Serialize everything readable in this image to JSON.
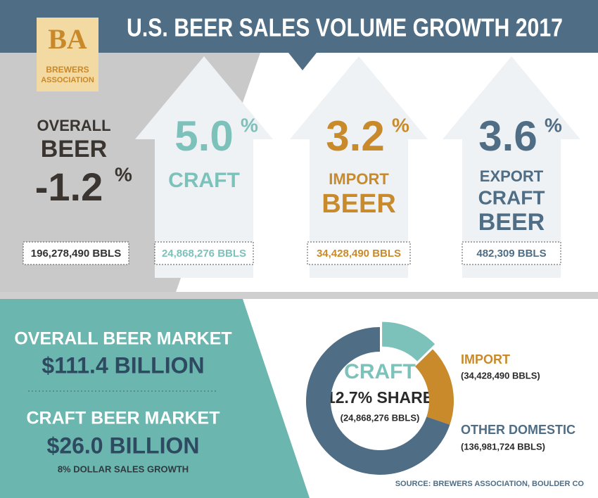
{
  "header": {
    "title": "U.S. BEER SALES VOLUME GROWTH 2017",
    "logo": {
      "mark": "BA",
      "name": [
        "BREWERS",
        "ASSOCIATION"
      ]
    }
  },
  "stats": [
    {
      "lines": [
        "OVERALL",
        "BEER"
      ],
      "value": "-1.2",
      "unit": "%",
      "volume": "196,278,490 BBLS"
    },
    {
      "lines": [
        "CRAFT"
      ],
      "value": "5.0",
      "unit": "%",
      "volume": "24,868,276 BBLS"
    },
    {
      "lines": [
        "IMPORT",
        "BEER"
      ],
      "value": "3.2",
      "unit": "%",
      "volume": "34,428,490 BBLS"
    },
    {
      "lines": [
        "EXPORT",
        "CRAFT",
        "BEER"
      ],
      "value": "3.6",
      "unit": "%",
      "volume": "482,309 BBLS"
    }
  ],
  "market": {
    "overall": {
      "label": "OVERALL BEER MARKET",
      "value": "$111.4 BILLION"
    },
    "craft": {
      "label": "CRAFT BEER MARKET",
      "value": "$26.0 BILLION",
      "note": "8% DOLLAR SALES GROWTH"
    }
  },
  "chart_data": {
    "type": "pie",
    "categories": [
      "CRAFT",
      "IMPORT",
      "OTHER DOMESTIC"
    ],
    "values": [
      24868276,
      34428490,
      136981724
    ],
    "value_labels": [
      "(24,868,276 BBLS)",
      "(34,428,490 BBLS)",
      "(136,981,724 BBLS)"
    ],
    "colors": [
      "#7cc2bb",
      "#c88a2b",
      "#4f6d84"
    ],
    "center_label": "12.7% SHARE"
  },
  "source": "SOURCE: BREWERS ASSOCIATION, BOULDER CO"
}
